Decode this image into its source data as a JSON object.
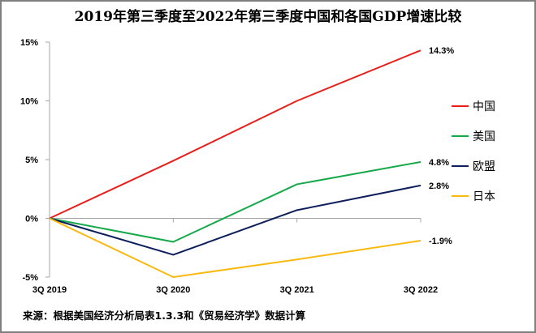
{
  "chart_data": {
    "type": "line",
    "title": "2019年第三季度至2022年第三季度中国和各国GDP增速比较",
    "categories": [
      "3Q 2019",
      "3Q 2020",
      "3Q 2021",
      "3Q 2022"
    ],
    "ylim": [
      -5,
      15
    ],
    "yticks": [
      -5,
      0,
      5,
      10,
      15
    ],
    "ytick_labels": [
      "-5%",
      "0%",
      "5%",
      "10%",
      "15%"
    ],
    "grid": false,
    "legend": "right",
    "series": [
      {
        "name": "中国",
        "color": "#e8201c",
        "values": [
          0,
          4.9,
          10.0,
          14.3
        ],
        "end_label": "14.3%"
      },
      {
        "name": "美国",
        "color": "#16a94a",
        "values": [
          0,
          -2.0,
          2.9,
          4.8
        ],
        "end_label": "4.8%"
      },
      {
        "name": "欧盟",
        "color": "#0e1f5b",
        "values": [
          0,
          -3.1,
          0.7,
          2.8
        ],
        "end_label": "2.8%"
      },
      {
        "name": "日本",
        "color": "#f9b90f",
        "values": [
          0,
          -5.0,
          -3.5,
          -1.9
        ],
        "end_label": "-1.9%"
      }
    ]
  },
  "footer": {
    "source": "来源：根据美国经济分析局表1.3.3和《贸易经济学》数据计算"
  }
}
